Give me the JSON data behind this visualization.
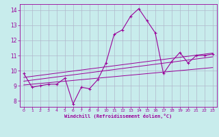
{
  "xlabel": "Windchill (Refroidissement éolien,°C)",
  "x": [
    0,
    1,
    2,
    3,
    4,
    5,
    6,
    7,
    8,
    9,
    10,
    11,
    12,
    13,
    14,
    15,
    16,
    17,
    18,
    19,
    20,
    21,
    22,
    23
  ],
  "y_main": [
    9.8,
    8.9,
    9.0,
    9.1,
    9.1,
    9.5,
    7.8,
    8.9,
    8.8,
    9.4,
    10.5,
    12.4,
    12.7,
    13.6,
    14.1,
    13.3,
    12.5,
    9.8,
    10.6,
    11.2,
    10.5,
    11.0,
    11.0,
    11.1
  ],
  "y_reg1": [
    9.05,
    9.1,
    9.15,
    9.2,
    9.25,
    9.3,
    9.35,
    9.4,
    9.45,
    9.5,
    9.55,
    9.6,
    9.65,
    9.7,
    9.75,
    9.8,
    9.85,
    9.9,
    9.95,
    10.0,
    10.05,
    10.1,
    10.15,
    10.2
  ],
  "y_reg2": [
    9.3,
    9.37,
    9.44,
    9.51,
    9.58,
    9.65,
    9.72,
    9.79,
    9.86,
    9.93,
    10.0,
    10.07,
    10.14,
    10.21,
    10.28,
    10.35,
    10.42,
    10.49,
    10.56,
    10.63,
    10.7,
    10.77,
    10.84,
    10.91
  ],
  "y_reg3": [
    9.55,
    9.62,
    9.69,
    9.76,
    9.83,
    9.9,
    9.97,
    10.04,
    10.11,
    10.18,
    10.25,
    10.32,
    10.39,
    10.46,
    10.53,
    10.6,
    10.67,
    10.74,
    10.81,
    10.88,
    10.95,
    11.02,
    11.09,
    11.16
  ],
  "line_color": "#990099",
  "bg_color": "#c8ecec",
  "grid_color": "#b0b8cc",
  "ylim": [
    7.6,
    14.4
  ],
  "xlim": [
    -0.5,
    23.5
  ],
  "yticks": [
    8,
    9,
    10,
    11,
    12,
    13,
    14
  ],
  "xticks": [
    0,
    1,
    2,
    3,
    4,
    5,
    6,
    7,
    8,
    9,
    10,
    11,
    12,
    13,
    14,
    15,
    16,
    17,
    18,
    19,
    20,
    21,
    22,
    23
  ]
}
